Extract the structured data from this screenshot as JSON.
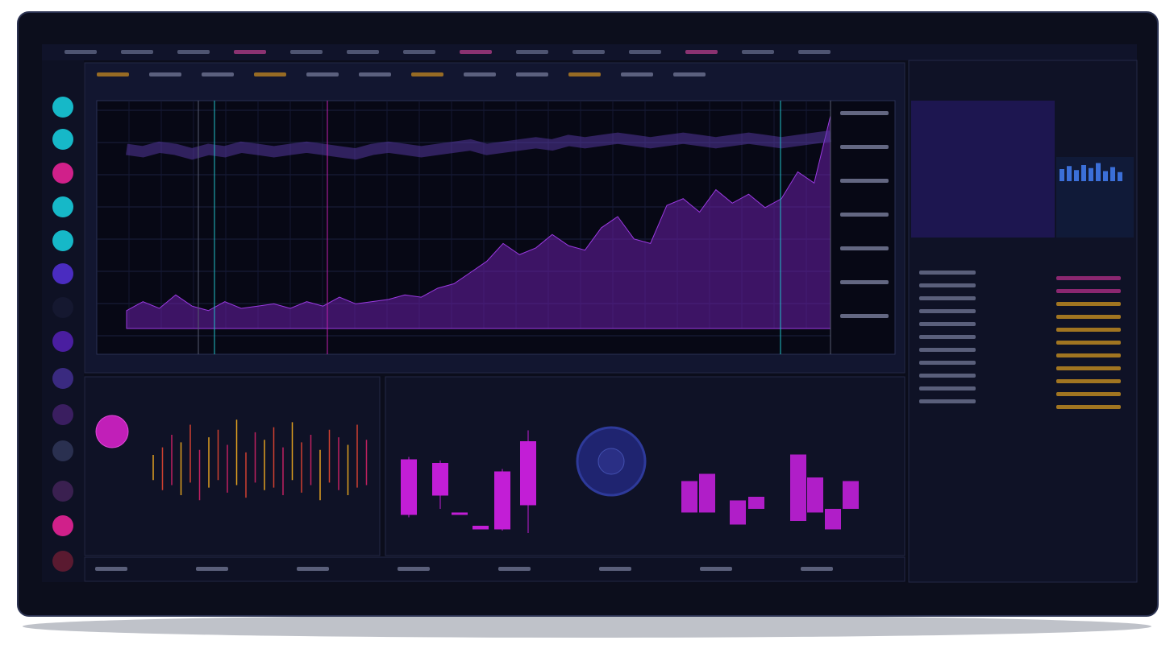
{
  "main_chart": {
    "type": "area",
    "color": "#6a1fa8",
    "ylim": [
      0,
      100
    ],
    "values": [
      8,
      12,
      9,
      15,
      10,
      8,
      12,
      9,
      10,
      11,
      9,
      12,
      10,
      14,
      11,
      12,
      13,
      15,
      14,
      18,
      20,
      25,
      30,
      38,
      33,
      36,
      42,
      37,
      35,
      45,
      50,
      40,
      38,
      55,
      58,
      52,
      62,
      56,
      60,
      54,
      58,
      70,
      65,
      95
    ],
    "band": [
      80,
      79,
      81,
      80,
      78,
      80,
      79,
      81,
      80,
      79,
      80,
      81,
      80,
      79,
      78,
      80,
      81,
      80,
      79,
      80,
      81,
      82,
      80,
      81,
      82,
      83,
      82,
      84,
      83,
      84,
      85,
      84,
      83,
      84,
      85,
      84,
      83,
      84,
      85,
      84,
      83,
      84,
      85,
      86
    ]
  },
  "candles_left": {
    "type": "candlestick",
    "color": "#c21ed6",
    "ylim": [
      0,
      100
    ],
    "open": [
      27,
      70,
      29,
      18,
      15,
      35
    ],
    "close": [
      73,
      43,
      27,
      15,
      63,
      88
    ],
    "high": [
      75,
      72,
      29,
      18,
      65,
      97
    ],
    "low": [
      25,
      32,
      27,
      15,
      14,
      12
    ]
  },
  "candles_right": {
    "type": "candlestick",
    "color": "#b01ec8",
    "ylim": [
      0,
      100
    ],
    "open": [
      29,
      29,
      19,
      32,
      22,
      29,
      15,
      32
    ],
    "close": [
      55,
      61,
      39,
      42,
      77,
      58,
      32,
      55
    ],
    "high": [
      55,
      61,
      39,
      42,
      77,
      58,
      32,
      55
    ],
    "low": [
      29,
      29,
      19,
      32,
      22,
      29,
      15,
      32
    ]
  },
  "spikes": {
    "type": "range",
    "ylim": [
      -100,
      100
    ],
    "high": [
      20,
      35,
      60,
      45,
      80,
      30,
      55,
      70,
      40,
      90,
      25,
      65,
      50,
      75,
      35,
      85,
      45,
      60,
      30,
      70,
      55,
      40,
      80,
      50
    ],
    "low": [
      -30,
      -50,
      -40,
      -60,
      -35,
      -70,
      -45,
      -30,
      -55,
      -40,
      -65,
      -35,
      -50,
      -45,
      -60,
      -30,
      -55,
      -40,
      -70,
      -35,
      -50,
      -60,
      -45,
      -40
    ]
  },
  "mini_bars": {
    "type": "bar",
    "color": "#3b6fd8",
    "ylim": [
      0,
      100
    ],
    "values": [
      60,
      75,
      55,
      80,
      65,
      90,
      50,
      70,
      45
    ]
  }
}
